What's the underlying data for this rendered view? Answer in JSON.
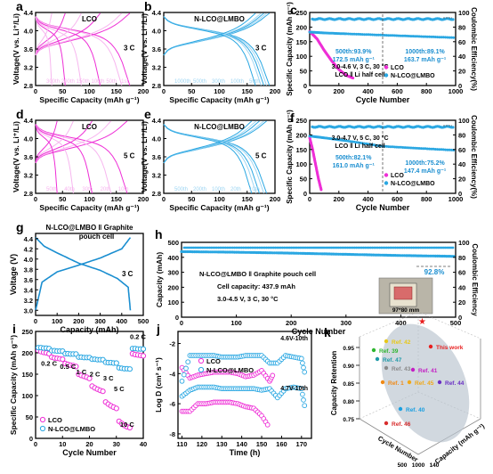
{
  "colors": {
    "lco": "#ee2fd6",
    "nlco": "#2aa7e2",
    "pink_light": "#f7b6ef",
    "blue_light": "#9fd6f3",
    "blue_dark": "#1a8ed0"
  },
  "panels": {
    "a": {
      "letter": "a",
      "title": "LCO",
      "rate": "3 C",
      "xlabel": "Specific Capacity (mAh g⁻¹)",
      "ylabel": "Voltage(V vs. Li⁺/Li)",
      "xticks": [
        "0",
        "50",
        "100",
        "150",
        "200"
      ],
      "yticks": [
        "2.8",
        "3.2",
        "3.6",
        "4.0",
        "4.4"
      ],
      "cycles": [
        "300th",
        "200th",
        "150th",
        "100th",
        "50th",
        "1st"
      ]
    },
    "b": {
      "letter": "b",
      "title": "N-LCO@LMBO",
      "rate": "3 C",
      "xlabel": "Specific Capacity (mAh g⁻¹)",
      "ylabel": "Voltage(V vs. Li⁺/Li)",
      "xticks": [
        "0",
        "50",
        "100",
        "150",
        "200"
      ],
      "yticks": [
        "2.8",
        "3.2",
        "3.6",
        "4.0",
        "4.4"
      ],
      "cycles": [
        "1000th",
        "500th",
        "300th",
        "100th",
        "50th"
      ]
    },
    "c": {
      "letter": "c",
      "xlabel": "Cycle Number",
      "ylabel": "Specific Capacity (mAh g⁻¹)",
      "y2label": "Coulombic Efficiency(%)",
      "xticks": [
        "0",
        "200",
        "400",
        "600",
        "800",
        "1000"
      ],
      "yticks": [
        "0",
        "50",
        "100",
        "150",
        "200",
        "250"
      ],
      "y2ticks": [
        "0",
        "20",
        "40",
        "60",
        "80",
        "100"
      ],
      "ann1": [
        "500th:93.9%",
        "172.5 mAh g⁻¹"
      ],
      "ann2": [
        "1000th:89.1%",
        "163.7 mAh g⁻¹"
      ],
      "cond": [
        "3.0-4.6 V, 3 C, 30 °C",
        "LCO ‖ Li half cell"
      ],
      "legend": [
        "LCO",
        "N-LCO@LMBO"
      ]
    },
    "d": {
      "letter": "d",
      "title": "LCO",
      "rate": "5 C",
      "xlabel": "Specific Capacity (mAh g⁻¹)",
      "ylabel": "Voltage(V vs. Li⁺/Li)",
      "xticks": [
        "0",
        "50",
        "100",
        "150",
        "200"
      ],
      "yticks": [
        "2.8",
        "3.2",
        "3.6",
        "4.0",
        "4.4"
      ],
      "cycles": [
        "50th",
        "40th",
        "30th",
        "20th",
        "10th"
      ]
    },
    "e": {
      "letter": "e",
      "title": "N-LCO@LMBO",
      "rate": "5 C",
      "xlabel": "Specific Capacity (mAh g⁻¹)",
      "ylabel": "Voltage(V vs. Li⁺/Li)",
      "xticks": [
        "0",
        "50",
        "100",
        "150",
        "200"
      ],
      "yticks": [
        "2.8",
        "3.2",
        "3.6",
        "4.0",
        "4.4"
      ],
      "cycles": [
        "500th",
        "200th",
        "100th",
        "20th",
        "10th"
      ]
    },
    "f": {
      "letter": "f",
      "xlabel": "Cycle Number",
      "ylabel": "Specific Capacity (mAh g⁻¹)",
      "y2label": "Coulombic Efficiency(%)",
      "xticks": [
        "0",
        "200",
        "400",
        "600",
        "800",
        "1000"
      ],
      "yticks": [
        "0",
        "50",
        "100",
        "150",
        "200",
        "250"
      ],
      "y2ticks": [
        "0",
        "20",
        "40",
        "60",
        "80",
        "100"
      ],
      "ann1": [
        "500th:82.1%",
        "161.0 mAh g⁻¹"
      ],
      "ann2": [
        "1000th:75.2%",
        "147.4 mAh g⁻¹"
      ],
      "cond": [
        "3.0-4.7 V, 5 C, 30 °C",
        "LCO ‖ Li half cell"
      ],
      "legend": [
        "LCO",
        "N-LCO@LMBO"
      ]
    },
    "g": {
      "letter": "g",
      "title": [
        "N-LCO@LMBO ‖ Graphite",
        "pouch cell"
      ],
      "rate": "3 C",
      "xlabel": "Capacity (mAh)",
      "ylabel": "Voltage (V)",
      "xticks": [
        "0",
        "100",
        "200",
        "300",
        "400",
        "500"
      ],
      "yticks": [
        "3.0",
        "3.2",
        "3.4",
        "3.6",
        "3.8",
        "4.0",
        "4.2",
        "4.4"
      ]
    },
    "h": {
      "letter": "h",
      "xlabel": "Cycle Number",
      "ylabel": "Capacity (mAh)",
      "y2label": "Coulombic Efficiency",
      "xticks": [
        "0",
        "100",
        "200",
        "300",
        "400",
        "500"
      ],
      "yticks": [
        "0",
        "100",
        "200",
        "300",
        "400",
        "500"
      ],
      "y2ticks": [
        "0",
        "20",
        "40",
        "60",
        "80",
        "100"
      ],
      "retention": "92.8%",
      "lines": [
        "N-LCO@LMBO ‖ Graphite pouch cell",
        "Cell capacity: 437.9 mAh",
        "3.0-4.5 V, 3 C, 30 °C"
      ],
      "photo_label": "97*80 mm"
    },
    "i": {
      "letter": "i",
      "xlabel": "Cycle Number",
      "ylabel": "Specific Capacity (mAh g⁻¹)",
      "xticks": [
        "0",
        "10",
        "20",
        "30",
        "40"
      ],
      "yticks": [
        "0",
        "50",
        "100",
        "150",
        "200",
        "250"
      ],
      "rates": [
        "0.2 C",
        "0.5 C",
        "1 C",
        "2 C",
        "3 C",
        "5 C",
        "10 C",
        "0.2 C"
      ],
      "legend": [
        "LCO",
        "N-LCO@LMBO"
      ]
    },
    "j": {
      "letter": "j",
      "xlabel": "Time (h)",
      "ylabel": "Log D (cm² s⁻¹)",
      "xticks": [
        "110",
        "120",
        "130",
        "140",
        "150",
        "160",
        "170"
      ],
      "yticks": [
        "-8",
        "-6",
        "-4",
        "-2"
      ],
      "labels": [
        "4.6V-10th",
        "4.7V-10th"
      ],
      "legend": [
        "LCO",
        "N-LCO@LMBO"
      ]
    },
    "k": {
      "letter": "k",
      "zlabel": "Capacity Retention",
      "xlabel": "Cycle Number",
      "ylabel": "Capacity (mAh g⁻¹)",
      "zticks": [
        "0.75",
        "0.80",
        "0.85",
        "0.90",
        "0.95"
      ],
      "xticks": [
        "500",
        "1000"
      ],
      "yticks": [
        "140"
      ],
      "refs": [
        {
          "label": "This work",
          "color": "#e81e1e"
        },
        {
          "label": "Ref. 39",
          "color": "#2fb52f"
        },
        {
          "label": "Ref. 47",
          "color": "#1f9aa8"
        },
        {
          "label": "Ref. 43",
          "color": "#8a8a8a"
        },
        {
          "label": "Ref. 41",
          "color": "#c41fc4"
        },
        {
          "label": "Ref. 1",
          "color": "#f08a16"
        },
        {
          "label": "Ref. 45",
          "color": "#f0a818"
        },
        {
          "label": "Ref. 44",
          "color": "#6a2fc4"
        },
        {
          "label": "Ref. 40",
          "color": "#1a9fe0"
        },
        {
          "label": "Ref. 46",
          "color": "#d82c2c"
        },
        {
          "label": "Ref. 42",
          "color": "#e8c81a"
        }
      ]
    }
  },
  "chart_data": [
    {
      "type": "line",
      "panel": "a",
      "title": "LCO",
      "xlim": [
        0,
        200
      ],
      "ylim": [
        2.8,
        4.6
      ],
      "series": [
        {
          "name": "1st",
          "capacity": 175
        },
        {
          "name": "50th",
          "capacity": 160
        },
        {
          "name": "100th",
          "capacity": 120
        },
        {
          "name": "150th",
          "capacity": 85
        },
        {
          "name": "200th",
          "capacity": 55
        },
        {
          "name": "300th",
          "capacity": 30
        }
      ]
    },
    {
      "type": "line",
      "panel": "b",
      "title": "N-LCO@LMBO",
      "xlim": [
        0,
        200
      ],
      "ylim": [
        2.8,
        4.6
      ],
      "series": [
        {
          "name": "50th",
          "capacity": 190
        },
        {
          "name": "100th",
          "capacity": 185
        },
        {
          "name": "300th",
          "capacity": 180
        },
        {
          "name": "500th",
          "capacity": 175
        },
        {
          "name": "1000th",
          "capacity": 165
        }
      ]
    },
    {
      "type": "scatter",
      "panel": "c",
      "xlim": [
        0,
        1000
      ],
      "ylim": [
        0,
        250
      ],
      "y2lim": [
        0,
        100
      ],
      "series": [
        {
          "name": "LCO",
          "x": [
            0,
            50,
            100,
            150,
            200,
            250,
            300
          ],
          "y": [
            185,
            160,
            120,
            85,
            55,
            35,
            25
          ]
        },
        {
          "name": "N-LCO@LMBO",
          "x": [
            0,
            100,
            250,
            500,
            750,
            1000
          ],
          "y": [
            183,
            180,
            177,
            172.5,
            168,
            163.7
          ]
        }
      ]
    },
    {
      "type": "line",
      "panel": "d",
      "title": "LCO",
      "xlim": [
        0,
        200
      ],
      "ylim": [
        2.8,
        4.6
      ],
      "series": [
        {
          "name": "10th",
          "capacity": 170
        },
        {
          "name": "20th",
          "capacity": 140
        },
        {
          "name": "30th",
          "capacity": 105
        },
        {
          "name": "40th",
          "capacity": 70
        },
        {
          "name": "50th",
          "capacity": 40
        }
      ]
    },
    {
      "type": "line",
      "panel": "e",
      "title": "N-LCO@LMBO",
      "xlim": [
        0,
        200
      ],
      "ylim": [
        2.8,
        4.6
      ],
      "series": [
        {
          "name": "10th",
          "capacity": 185
        },
        {
          "name": "20th",
          "capacity": 180
        },
        {
          "name": "100th",
          "capacity": 172
        },
        {
          "name": "200th",
          "capacity": 166
        },
        {
          "name": "500th",
          "capacity": 158
        }
      ]
    },
    {
      "type": "scatter",
      "panel": "f",
      "xlim": [
        0,
        1000
      ],
      "ylim": [
        0,
        250
      ],
      "y2lim": [
        0,
        100
      ],
      "series": [
        {
          "name": "LCO",
          "x": [
            0,
            20,
            40,
            60,
            80
          ],
          "y": [
            190,
            150,
            100,
            50,
            10
          ]
        },
        {
          "name": "N-LCO@LMBO",
          "x": [
            0,
            100,
            250,
            500,
            750,
            1000
          ],
          "y": [
            196,
            190,
            180,
            161.0,
            154,
            147.4
          ]
        }
      ]
    },
    {
      "type": "line",
      "panel": "g",
      "xlim": [
        0,
        500
      ],
      "ylim": [
        2.9,
        4.5
      ],
      "series": [
        {
          "name": "charge",
          "x": [
            0,
            30,
            100,
            200,
            300,
            400,
            440
          ],
          "y": [
            3.0,
            3.55,
            3.75,
            3.88,
            4.02,
            4.2,
            4.42
          ]
        },
        {
          "name": "discharge",
          "x": [
            0,
            40,
            100,
            200,
            300,
            380,
            430,
            440
          ],
          "y": [
            4.42,
            4.25,
            4.12,
            3.92,
            3.78,
            3.62,
            3.45,
            3.0
          ]
        }
      ]
    },
    {
      "type": "scatter",
      "panel": "h",
      "xlim": [
        0,
        500
      ],
      "ylim": [
        0,
        500
      ],
      "y2lim": [
        0,
        100
      ],
      "series": [
        {
          "name": "Capacity",
          "x": [
            0,
            100,
            200,
            300,
            400,
            500
          ],
          "y": [
            437.9,
            434,
            428,
            420,
            412,
            406.4
          ]
        }
      ]
    },
    {
      "type": "scatter",
      "panel": "i",
      "xlim": [
        0,
        40
      ],
      "ylim": [
        0,
        250
      ],
      "series": [
        {
          "name": "LCO",
          "y": [
            205,
            203,
            201,
            200,
            198,
            190,
            188,
            187,
            186,
            185,
            175,
            173,
            171,
            170,
            168,
            150,
            147,
            145,
            143,
            140,
            122,
            118,
            115,
            112,
            110,
            85,
            80,
            76,
            73,
            70,
            40,
            35,
            30,
            27,
            25,
            198,
            196,
            195,
            194,
            193
          ]
        },
        {
          "name": "N-LCO@LMBO",
          "y": [
            212,
            212,
            211,
            211,
            210,
            205,
            205,
            204,
            204,
            204,
            198,
            198,
            197,
            197,
            197,
            190,
            190,
            189,
            189,
            189,
            185,
            185,
            184,
            184,
            184,
            178,
            177,
            177,
            176,
            176,
            165,
            164,
            163,
            163,
            162,
            210,
            210,
            209,
            209,
            209
          ]
        }
      ]
    },
    {
      "type": "scatter",
      "panel": "j",
      "xlim": [
        108,
        175
      ],
      "ylim": [
        -8.3,
        -1.2
      ],
      "series": [
        {
          "name": "LCO (4.6V-10th)",
          "x": [
            110,
            114,
            118,
            122,
            126,
            130,
            134,
            138,
            142,
            146,
            150,
            154,
            156
          ],
          "y": [
            -3.6,
            -4.3,
            -4.1,
            -4.0,
            -3.9,
            -3.9,
            -3.9,
            -4.0,
            -4.2,
            -4.1,
            -3.8,
            -4.5,
            -4.0
          ]
        },
        {
          "name": "N-LCO@LMBO (4.6V-10th)",
          "x": [
            110,
            114,
            118,
            122,
            126,
            130,
            134,
            138,
            142,
            146,
            150,
            154,
            158,
            162,
            166,
            170,
            172
          ],
          "y": [
            -4.5,
            -2.8,
            -2.8,
            -2.8,
            -2.8,
            -2.9,
            -2.9,
            -2.9,
            -2.8,
            -2.8,
            -2.8,
            -3.3,
            -3.3,
            -2.8,
            -2.9,
            -3.0,
            -4.2
          ]
        },
        {
          "name": "LCO (4.7V-10th)",
          "x": [
            110,
            114,
            118,
            122,
            126,
            130,
            134,
            138,
            142,
            146,
            150,
            154
          ],
          "y": [
            -6.5,
            -6.5,
            -6.0,
            -6.0,
            -5.9,
            -5.9,
            -5.9,
            -6.0,
            -6.2,
            -6.3,
            -6.8,
            -7.6
          ]
        },
        {
          "name": "N-LCO@LMBO (4.7V-10th)",
          "x": [
            110,
            114,
            118,
            122,
            126,
            130,
            134,
            138,
            142,
            146,
            150,
            154,
            158,
            162,
            166,
            170,
            172
          ],
          "y": [
            -5.5,
            -5.1,
            -4.9,
            -4.9,
            -4.9,
            -5.0,
            -5.0,
            -5.0,
            -5.0,
            -5.0,
            -5.1,
            -5.0,
            -5.6,
            -5.0,
            -4.9,
            -5.0,
            -6.5
          ]
        }
      ]
    },
    {
      "type": "scatter",
      "panel": "k",
      "zlim": [
        0.75,
        0.97
      ],
      "points": [
        {
          "label": "This work",
          "z": 0.95
        },
        {
          "label": "Ref. 39",
          "z": 0.91
        },
        {
          "label": "Ref. 47",
          "z": 0.89
        },
        {
          "label": "Ref. 43",
          "z": 0.87
        },
        {
          "label": "Ref. 41",
          "z": 0.88
        },
        {
          "label": "Ref. 1",
          "z": 0.84
        },
        {
          "label": "Ref. 45",
          "z": 0.84
        },
        {
          "label": "Ref. 44",
          "z": 0.85
        },
        {
          "label": "Ref. 40",
          "z": 0.8
        },
        {
          "label": "Ref. 46",
          "z": 0.78
        },
        {
          "label": "Ref. 42",
          "z": 0.93
        }
      ]
    }
  ]
}
